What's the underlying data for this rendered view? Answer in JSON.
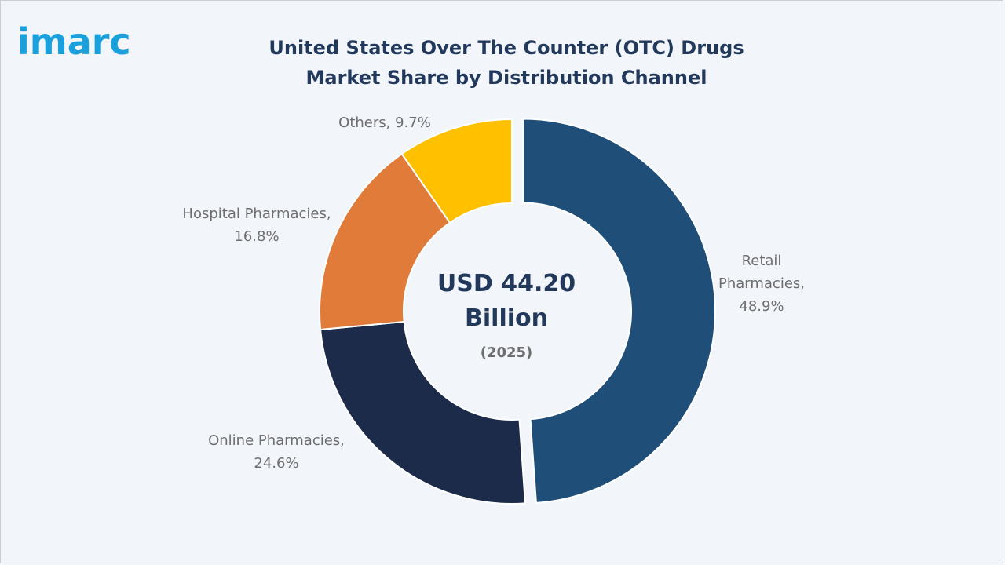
{
  "brand": {
    "logo_text": "imarc",
    "logo_color": "#1aa0dc"
  },
  "chart_data": {
    "type": "pie",
    "style": "donut",
    "title": "United States Over The Counter (OTC) Drugs Market Share by Distribution Channel",
    "center": {
      "value_line1": "USD 44.20",
      "value_line2": "Billion",
      "year": "(2025)"
    },
    "slices": [
      {
        "label_lines": [
          "Retail",
          "Pharmacies,",
          "48.9%"
        ],
        "name": "Retail Pharmacies",
        "value": 48.9,
        "color": "#1f4e79",
        "exploded": true
      },
      {
        "label_lines": [
          "Online Pharmacies,",
          "24.6%"
        ],
        "name": "Online Pharmacies",
        "value": 24.6,
        "color": "#1c2b4a",
        "exploded": false
      },
      {
        "label_lines": [
          "Hospital Pharmacies,",
          "16.8%"
        ],
        "name": "Hospital Pharmacies",
        "value": 16.8,
        "color": "#e07b39",
        "exploded": false
      },
      {
        "label_lines": [
          "Others, 9.7%"
        ],
        "name": "Others",
        "value": 9.7,
        "color": "#ffc000",
        "exploded": false
      }
    ]
  }
}
